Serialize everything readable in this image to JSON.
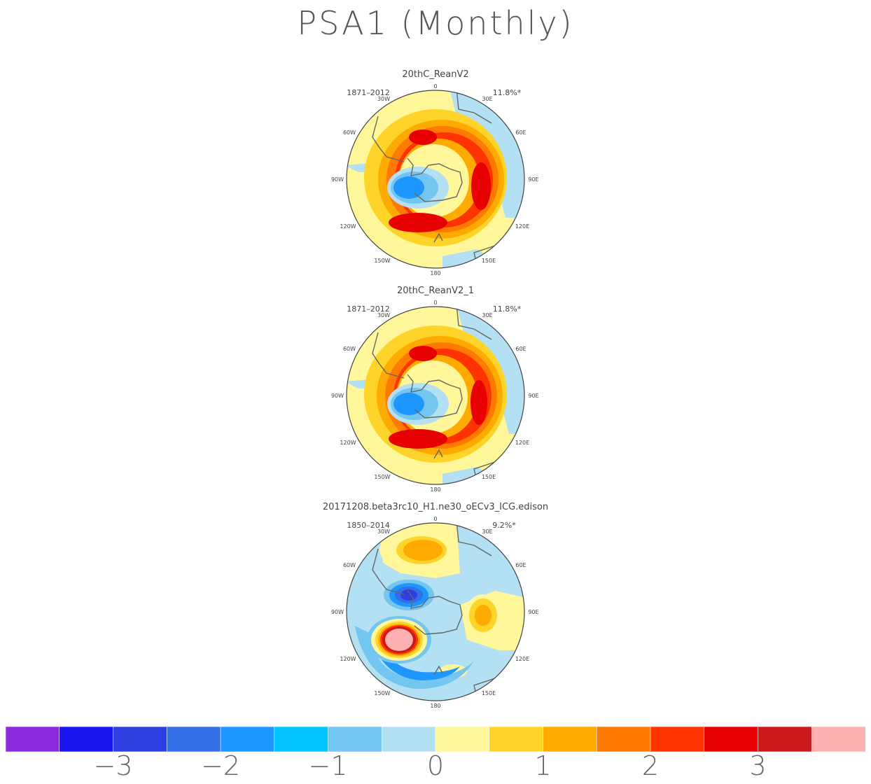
{
  "title": "PSA1 (Monthly)",
  "colorbar": {
    "colors": [
      "#8a2be2",
      "#1a16f0",
      "#2d3fe0",
      "#3370e8",
      "#1e96ff",
      "#00c3ff",
      "#73c6f0",
      "#b3e0f2",
      "#fff799",
      "#ffd42a",
      "#ffaa00",
      "#ff7a00",
      "#ff3300",
      "#e60000",
      "#cc1a1a",
      "#ffb0b0"
    ],
    "tick_labels": [
      "−3",
      "−2",
      "−1",
      "0",
      "1",
      "2",
      "3"
    ]
  },
  "chart_data": [
    {
      "type": "heatmap",
      "title": "20thC_ReanV2",
      "period": "1871–2012",
      "variance": "11.8%*",
      "lon_labels": [
        "0",
        "30E",
        "60E",
        "90E",
        "120E",
        "150E",
        "180",
        "150W",
        "120W",
        "90W",
        "60W",
        "30W"
      ],
      "features": [
        {
          "kind": "positive-ring",
          "max": 3
        },
        {
          "kind": "negative-center",
          "min": -1.5
        }
      ]
    },
    {
      "type": "heatmap",
      "title": "20thC_ReanV2_1",
      "period": "1871–2012",
      "variance": "11.8%*",
      "lon_labels": [
        "0",
        "30E",
        "60E",
        "90E",
        "120E",
        "150E",
        "180",
        "150W",
        "120W",
        "90W",
        "60W",
        "30W"
      ],
      "features": [
        {
          "kind": "positive-ring",
          "max": 3
        },
        {
          "kind": "negative-center",
          "min": -1.5
        }
      ]
    },
    {
      "type": "heatmap",
      "title": "20171208.beta3rc10_H1.ne30_oECv3_ICG.edison",
      "period": "1850–2014",
      "variance": "9.2%*",
      "lon_labels": [
        "0",
        "30E",
        "60E",
        "90E",
        "120E",
        "150E",
        "180",
        "150W",
        "120W",
        "90W",
        "60W",
        "30W"
      ],
      "features": [
        {
          "kind": "positive-center",
          "max": 3.5
        },
        {
          "kind": "negative-center",
          "min": -2.5
        }
      ]
    }
  ]
}
